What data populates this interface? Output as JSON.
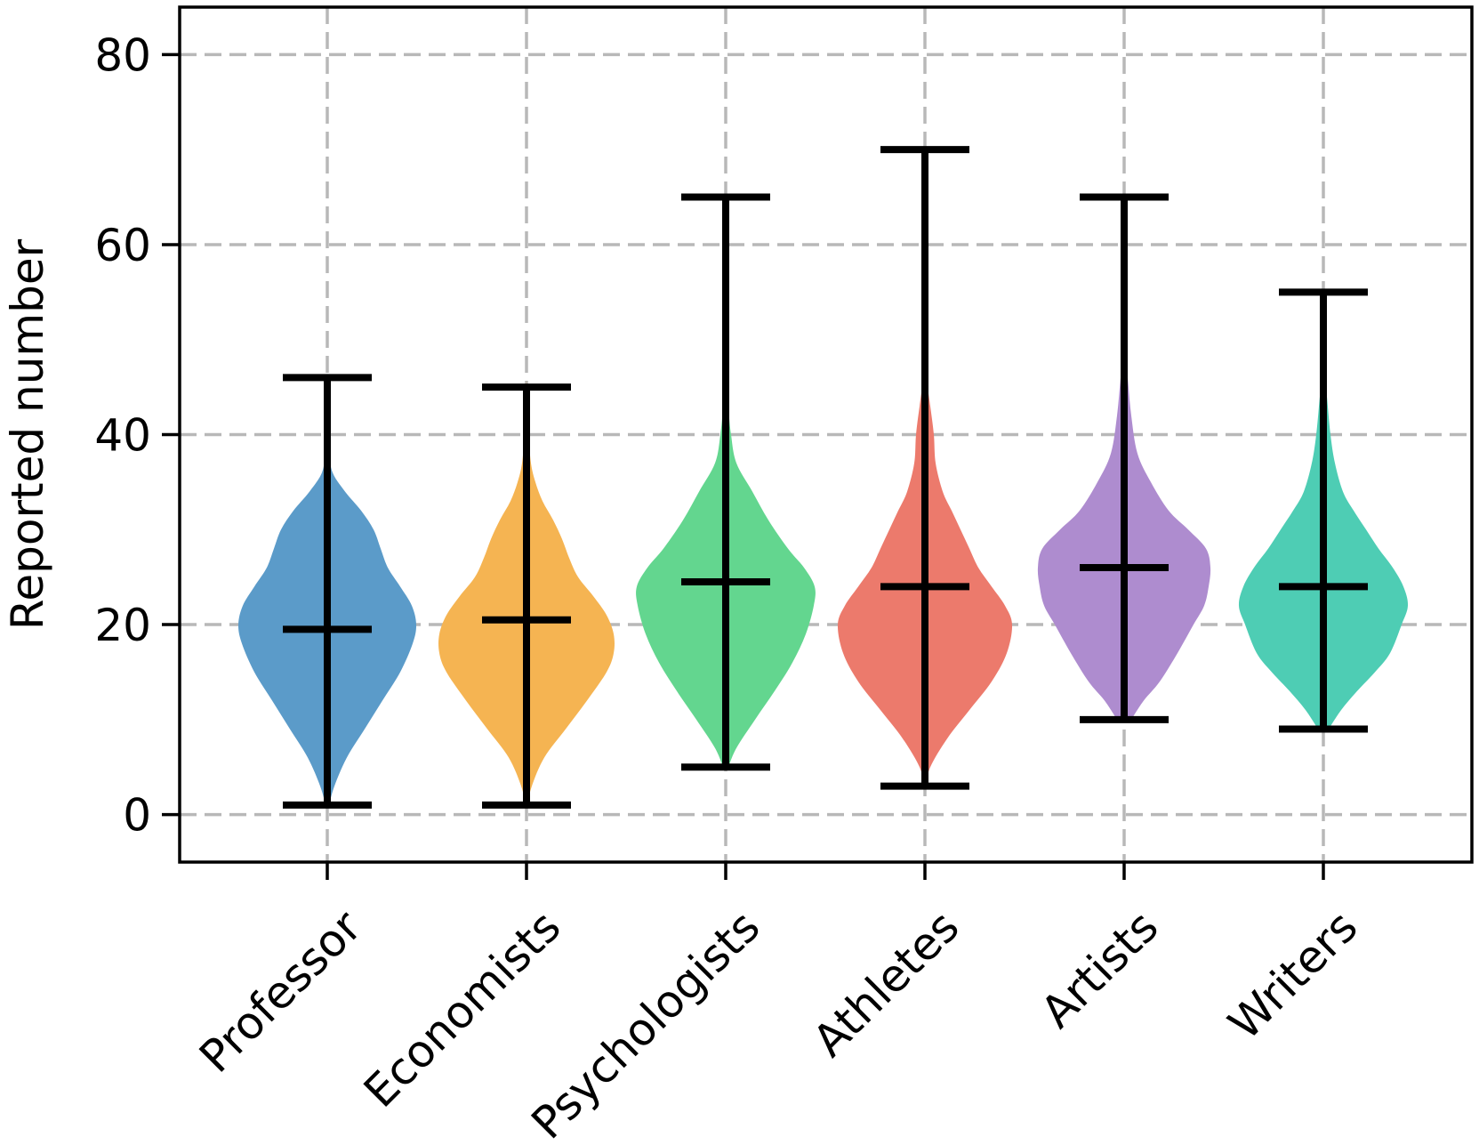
{
  "chart_data": {
    "type": "violin",
    "title": "",
    "xlabel": "",
    "ylabel": "Reported number",
    "ylim": [
      -5,
      85
    ],
    "yticks": [
      0,
      20,
      40,
      60,
      80
    ],
    "grid": true,
    "categories": [
      "Professor",
      "Economists",
      "Psychologists",
      "Athletes",
      "Artists",
      "Writers"
    ],
    "colors": [
      "#5b9bc9",
      "#f5b452",
      "#63d68f",
      "#ec7a6c",
      "#ae8ccf",
      "#4ecdb4"
    ],
    "min": [
      1,
      1,
      5,
      3,
      10,
      9
    ],
    "max": [
      46,
      45,
      65,
      70,
      65,
      55
    ],
    "median": [
      19.5,
      20.5,
      24.5,
      24,
      26,
      24
    ],
    "density_profiles": [
      [
        [
          1,
          0.02
        ],
        [
          3,
          0.08
        ],
        [
          6,
          0.22
        ],
        [
          9,
          0.42
        ],
        [
          12,
          0.62
        ],
        [
          15,
          0.82
        ],
        [
          18,
          0.96
        ],
        [
          20,
          1.0
        ],
        [
          22,
          0.95
        ],
        [
          24,
          0.82
        ],
        [
          26,
          0.68
        ],
        [
          28,
          0.6
        ],
        [
          30,
          0.52
        ],
        [
          32,
          0.38
        ],
        [
          34,
          0.2
        ],
        [
          36,
          0.06
        ],
        [
          38,
          0.03
        ],
        [
          42,
          0.015
        ],
        [
          46,
          0.0
        ]
      ],
      [
        [
          1,
          0.01
        ],
        [
          3,
          0.06
        ],
        [
          6,
          0.2
        ],
        [
          9,
          0.44
        ],
        [
          12,
          0.68
        ],
        [
          15,
          0.9
        ],
        [
          17,
          0.98
        ],
        [
          19,
          0.98
        ],
        [
          21,
          0.9
        ],
        [
          23,
          0.75
        ],
        [
          25,
          0.58
        ],
        [
          27,
          0.48
        ],
        [
          29,
          0.4
        ],
        [
          31,
          0.3
        ],
        [
          33,
          0.18
        ],
        [
          35,
          0.1
        ],
        [
          37,
          0.05
        ],
        [
          40,
          0.025
        ],
        [
          45,
          0.0
        ]
      ],
      [
        [
          5,
          0.03
        ],
        [
          7,
          0.12
        ],
        [
          10,
          0.33
        ],
        [
          13,
          0.55
        ],
        [
          16,
          0.75
        ],
        [
          19,
          0.9
        ],
        [
          22,
          0.99
        ],
        [
          24,
          1.0
        ],
        [
          26,
          0.88
        ],
        [
          28,
          0.7
        ],
        [
          31,
          0.48
        ],
        [
          34,
          0.3
        ],
        [
          37,
          0.12
        ],
        [
          40,
          0.06
        ],
        [
          43,
          0.03
        ],
        [
          48,
          0.0
        ]
      ],
      [
        [
          3,
          0.01
        ],
        [
          5,
          0.06
        ],
        [
          8,
          0.25
        ],
        [
          11,
          0.5
        ],
        [
          14,
          0.75
        ],
        [
          17,
          0.92
        ],
        [
          20,
          0.98
        ],
        [
          22,
          0.9
        ],
        [
          24,
          0.75
        ],
        [
          26,
          0.6
        ],
        [
          28,
          0.5
        ],
        [
          30,
          0.4
        ],
        [
          32,
          0.3
        ],
        [
          34,
          0.2
        ],
        [
          37,
          0.12
        ],
        [
          40,
          0.1
        ],
        [
          43,
          0.06
        ],
        [
          47,
          0.0
        ]
      ],
      [
        [
          10,
          0.08
        ],
        [
          12,
          0.22
        ],
        [
          14,
          0.4
        ],
        [
          17,
          0.6
        ],
        [
          20,
          0.78
        ],
        [
          22,
          0.9
        ],
        [
          24,
          0.95
        ],
        [
          26,
          0.97
        ],
        [
          28,
          0.92
        ],
        [
          30,
          0.72
        ],
        [
          32,
          0.5
        ],
        [
          35,
          0.3
        ],
        [
          38,
          0.15
        ],
        [
          42,
          0.08
        ],
        [
          46,
          0.04
        ],
        [
          50,
          0.0
        ]
      ],
      [
        [
          9,
          0.06
        ],
        [
          11,
          0.2
        ],
        [
          13,
          0.38
        ],
        [
          15,
          0.58
        ],
        [
          17,
          0.75
        ],
        [
          20,
          0.88
        ],
        [
          22,
          0.95
        ],
        [
          24,
          0.9
        ],
        [
          26,
          0.78
        ],
        [
          28,
          0.62
        ],
        [
          30,
          0.48
        ],
        [
          32,
          0.34
        ],
        [
          34,
          0.22
        ],
        [
          37,
          0.13
        ],
        [
          40,
          0.08
        ],
        [
          44,
          0.04
        ],
        [
          48,
          0.0
        ]
      ]
    ]
  }
}
